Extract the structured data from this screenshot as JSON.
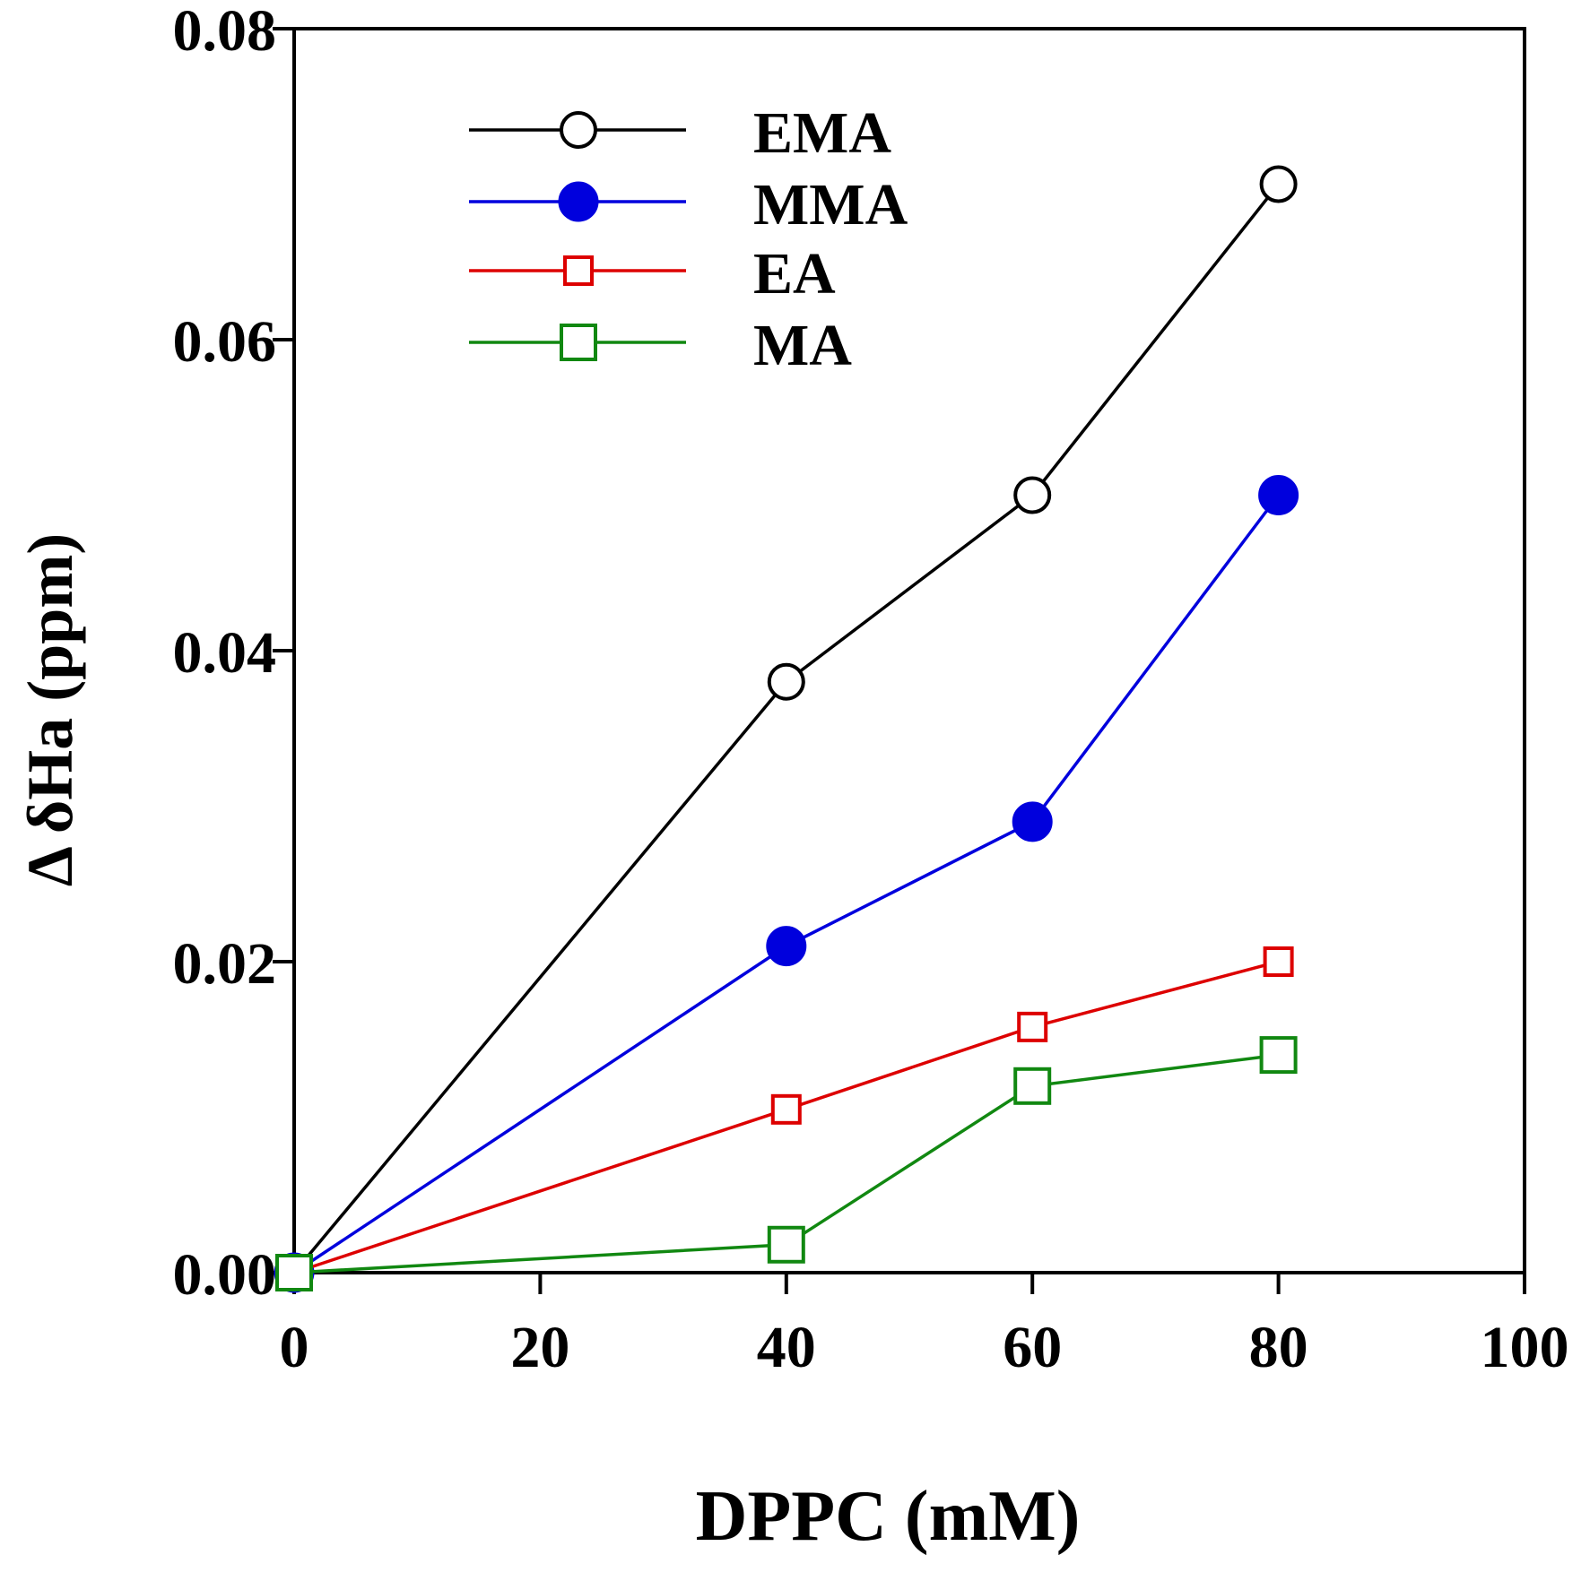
{
  "chart_data": {
    "type": "line",
    "title": "",
    "xlabel": "DPPC (mM)",
    "ylabel": "Δ δHa (ppm)",
    "xlim": [
      0,
      100
    ],
    "ylim": [
      0,
      0.08
    ],
    "xticks": [
      0,
      20,
      40,
      60,
      80,
      100
    ],
    "yticks": [
      0,
      0.02,
      0.04,
      0.06,
      0.08
    ],
    "xtick_labels": [
      "0",
      "20",
      "40",
      "60",
      "80",
      "100"
    ],
    "ytick_labels": [
      "0.00",
      "0.02",
      "0.04",
      "0.06",
      "0.08"
    ],
    "grid": false,
    "legend_position": "top-left",
    "series": [
      {
        "name": "EMA",
        "x": [
          0,
          40,
          60,
          80
        ],
        "values": [
          0,
          0.038,
          0.05,
          0.07
        ],
        "color": "#000000",
        "marker": "circle-open"
      },
      {
        "name": "MMA",
        "x": [
          0,
          40,
          60,
          80
        ],
        "values": [
          0,
          0.021,
          0.029,
          0.05
        ],
        "color": "#0000dd",
        "marker": "circle-filled"
      },
      {
        "name": "EA",
        "x": [
          0,
          40,
          60,
          80
        ],
        "values": [
          0,
          0.0105,
          0.0158,
          0.02
        ],
        "color": "#dd0000",
        "marker": "square-open-small"
      },
      {
        "name": "MA",
        "x": [
          0,
          40,
          60,
          80
        ],
        "values": [
          0,
          0.0018,
          0.012,
          0.014
        ],
        "color": "#118811",
        "marker": "square-open-large"
      }
    ]
  }
}
